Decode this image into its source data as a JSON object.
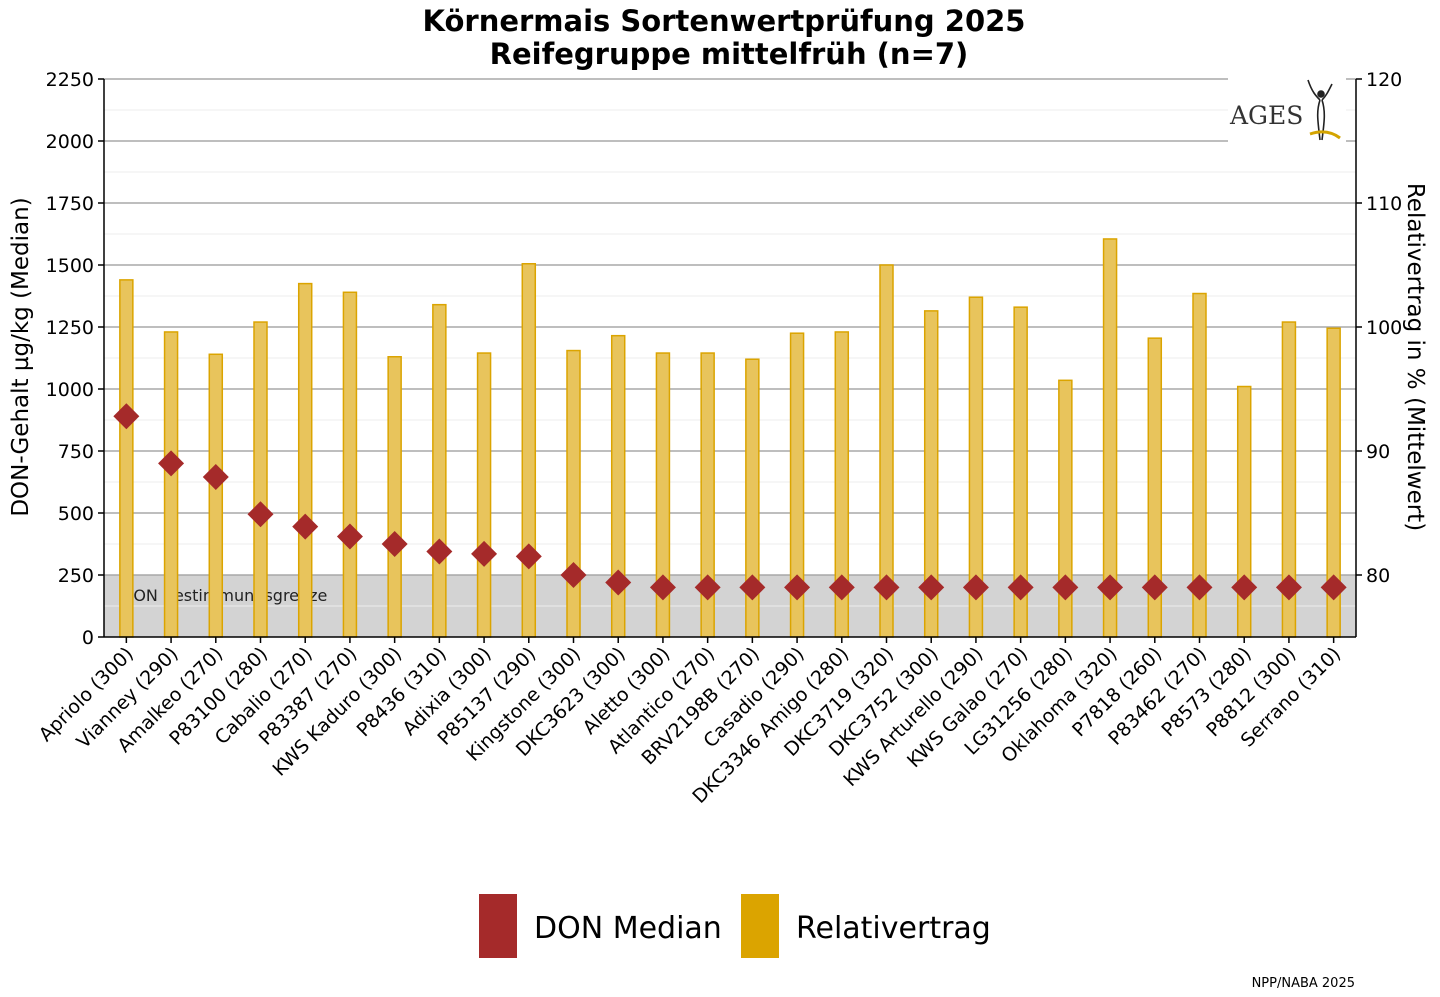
{
  "chart_data": {
    "type": "bar",
    "title": "Körnermais Sortenwertprüfung 2025",
    "subtitle": "Reifegruppe mittelfrüh (n=7)",
    "ylabel": "DON-Gehalt µg/kg (Median)",
    "y2label": "Relativertrag in % (Mittelwert)",
    "ylim": [
      0,
      2250
    ],
    "y2lim": [
      75,
      120
    ],
    "yticks": [
      0,
      250,
      500,
      750,
      1000,
      1250,
      1500,
      1750,
      2000,
      2250
    ],
    "y2ticks": [
      80,
      90,
      100,
      110,
      120
    ],
    "grid": true,
    "legend_position": "bottom",
    "threshold": {
      "value": 250,
      "label": "DON Bestimmungsgrenze"
    },
    "categories": [
      "Apriolo (300)",
      "Vianney (290)",
      "Amalkeo (270)",
      "P83100 (280)",
      "Cabalio (270)",
      "P83387 (270)",
      "KWS Kaduro (300)",
      "P8436 (310)",
      "Adixia (300)",
      "P85137 (290)",
      "Kingstone (300)",
      "DKC3623 (300)",
      "Aletto (300)",
      "Atlantico (270)",
      "BRV2198B (270)",
      "Casadio (290)",
      "DKC3346 Amigo (280)",
      "DKC3719 (320)",
      "DKC3752 (300)",
      "KWS Arturello (290)",
      "KWS Galao (270)",
      "LG31256 (280)",
      "Oklahoma (320)",
      "P7818 (260)",
      "P83462 (270)",
      "P8573 (280)",
      "P8812 (300)",
      "Serrano (310)"
    ],
    "series": [
      {
        "name": "Relativertrag",
        "axis": "right",
        "type": "bar",
        "color": "#e6a800",
        "values": [
          103.8,
          99.6,
          97.8,
          100.4,
          103.5,
          102.8,
          97.6,
          101.8,
          97.9,
          105.1,
          98.1,
          99.3,
          97.9,
          97.9,
          97.4,
          99.5,
          99.6,
          105.0,
          101.3,
          102.4,
          101.6,
          95.7,
          107.1,
          99.1,
          102.7,
          95.2,
          100.4,
          99.9
        ]
      },
      {
        "name": "DON Median",
        "axis": "left",
        "type": "scatter",
        "color": "#a52a2a",
        "values": [
          890,
          700,
          645,
          495,
          445,
          405,
          375,
          345,
          335,
          325,
          250,
          220,
          200,
          200,
          200,
          200,
          200,
          200,
          200,
          200,
          200,
          200,
          200,
          200,
          200,
          200,
          200,
          200
        ]
      }
    ]
  },
  "legend": {
    "don_label": "DON Median",
    "ertrag_label": "Relativertrag"
  },
  "logo_text": "AGES",
  "footer_note": "NPP/NABA 2025",
  "colors": {
    "bar_fill": "#e8c45c",
    "bar_stroke": "#dba400",
    "marker": "#a52a2a",
    "threshold_band": "#d3d3d3",
    "legend_bar": "#dba400"
  }
}
